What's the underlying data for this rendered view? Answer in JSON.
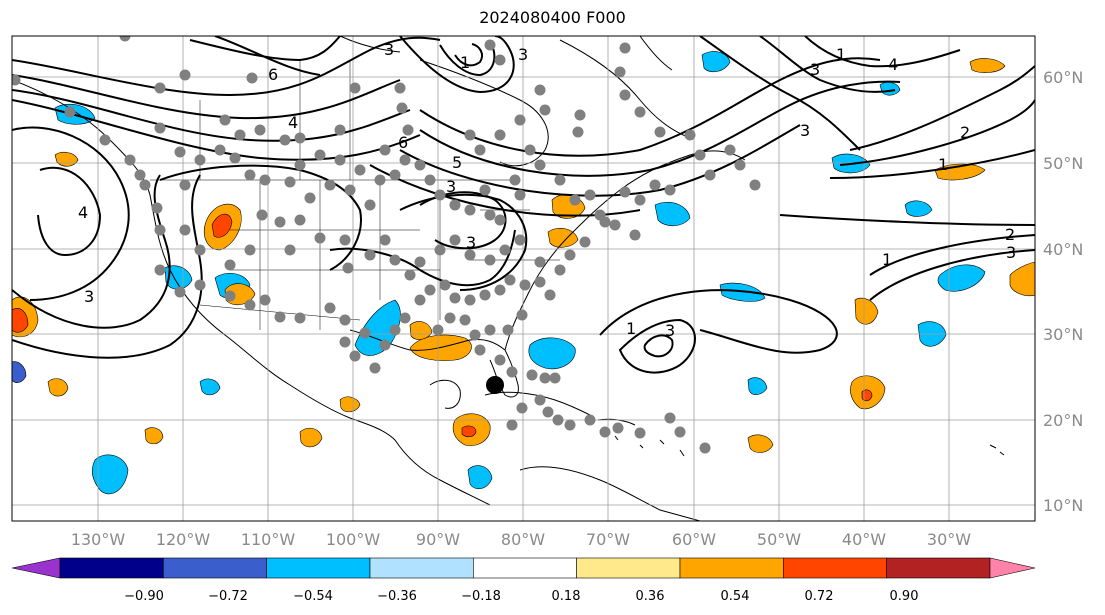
{
  "title": "2024080400 F000",
  "lat_labels": [
    "60°N",
    "50°N",
    "40°N",
    "30°N",
    "20°N",
    "10°N"
  ],
  "lon_labels": [
    "130°W",
    "120°W",
    "110°W",
    "100°W",
    "90°W",
    "80°W",
    "70°W",
    "60°W",
    "50°W",
    "40°W",
    "30°W"
  ],
  "colorbar": {
    "labels": [
      "−0.90",
      "−0.72",
      "−0.54",
      "−0.36",
      "−0.18",
      "0.18",
      "0.36",
      "0.54",
      "0.72",
      "0.90"
    ],
    "colors": [
      "#9a32cd",
      "#00008b",
      "#3a5fcd",
      "#00bfff",
      "#b0e2ff",
      "#ffffff",
      "#ffe98a",
      "#ffa500",
      "#ff4500",
      "#b22222",
      "#ff82ab"
    ]
  },
  "contour_labels": [
    "1",
    "6",
    "3",
    "4",
    "6",
    "3",
    "5",
    "4",
    "3",
    "3",
    "1",
    "2",
    "1",
    "3",
    "2",
    "3",
    "1",
    "1",
    "3",
    "3",
    "4",
    "3"
  ],
  "colors": {
    "grid": "#9e9e9e",
    "contour": "#000000",
    "coast": "#000000",
    "dot": "#808080",
    "marker": "#000000"
  }
}
